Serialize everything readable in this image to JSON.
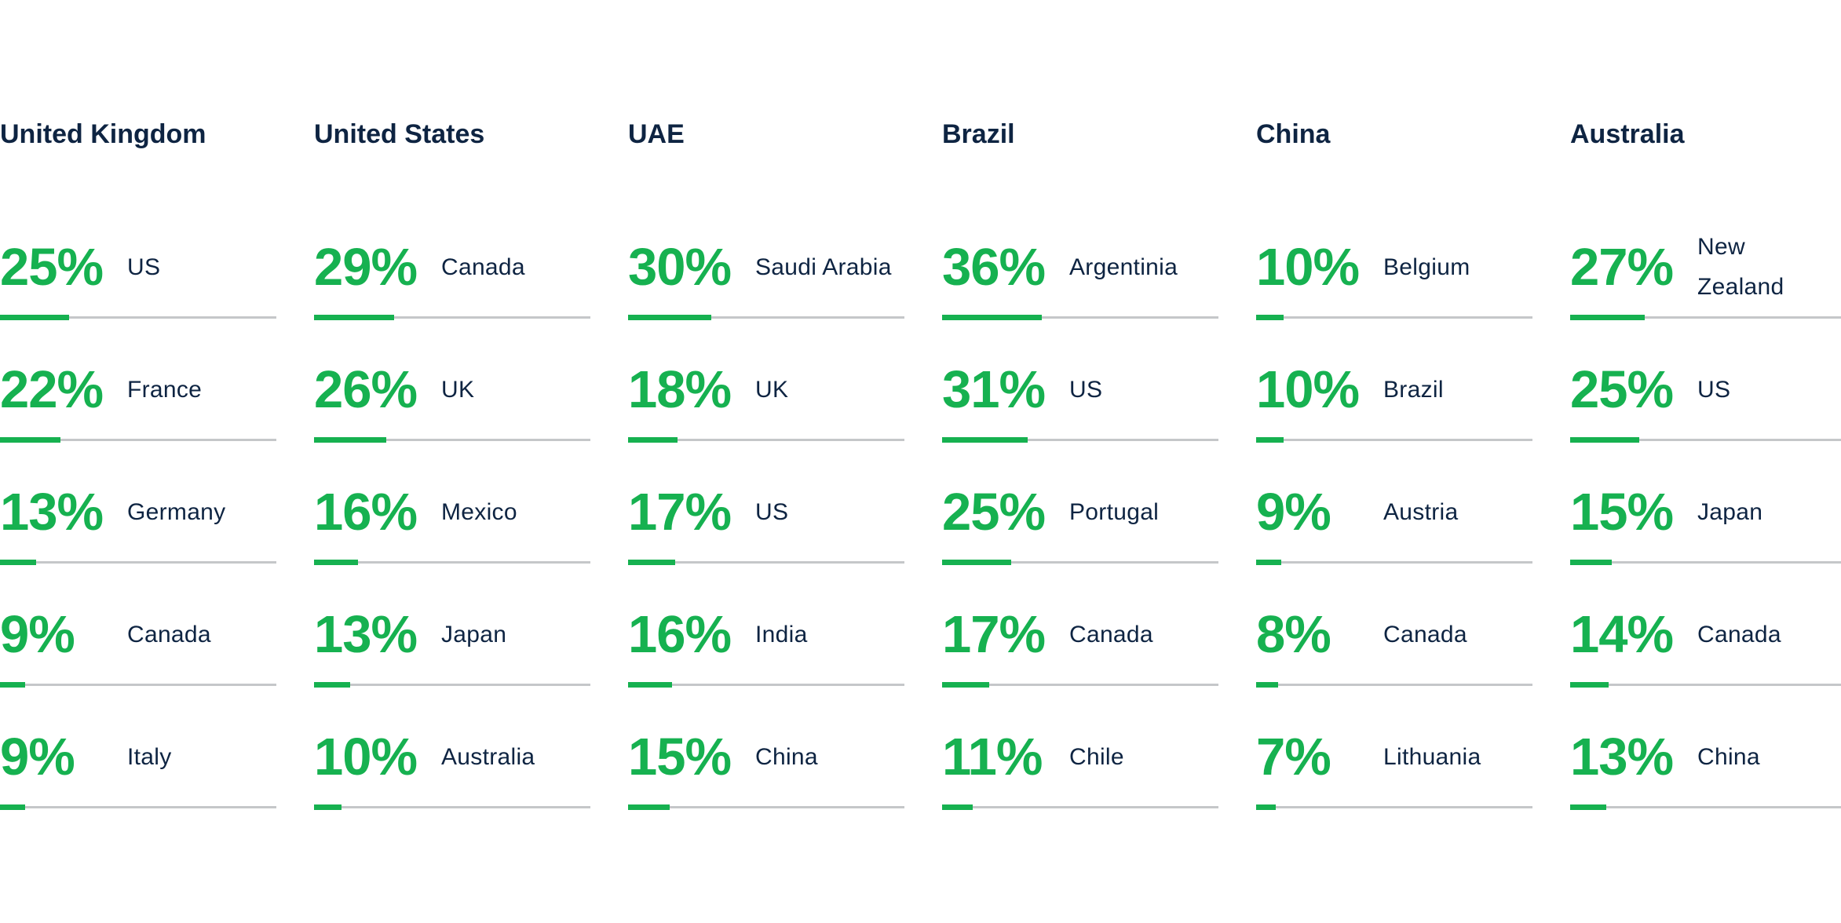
{
  "colors": {
    "accent_green": "#16B150",
    "navy": "#0E2442",
    "track_gray": "#C5C7C9",
    "background": "#FFFFFF"
  },
  "chart_data": {
    "type": "bar",
    "orientation": "horizontal",
    "unit": "%",
    "value_range": [
      0,
      100
    ],
    "grid": false,
    "legend": false,
    "description": "Six country columns, each with top five destination countries and percentage bars",
    "groups": [
      {
        "header": "United Kingdom",
        "rows": [
          {
            "value": 25,
            "percent_label": "25%",
            "label": "US"
          },
          {
            "value": 22,
            "percent_label": "22%",
            "label": "France"
          },
          {
            "value": 13,
            "percent_label": "13%",
            "label": "Germany"
          },
          {
            "value": 9,
            "percent_label": "9%",
            "label": "Canada"
          },
          {
            "value": 9,
            "percent_label": "9%",
            "label": "Italy"
          }
        ]
      },
      {
        "header": "United States",
        "rows": [
          {
            "value": 29,
            "percent_label": "29%",
            "label": "Canada"
          },
          {
            "value": 26,
            "percent_label": "26%",
            "label": "UK"
          },
          {
            "value": 16,
            "percent_label": "16%",
            "label": "Mexico"
          },
          {
            "value": 13,
            "percent_label": "13%",
            "label": "Japan"
          },
          {
            "value": 10,
            "percent_label": "10%",
            "label": "Australia"
          }
        ]
      },
      {
        "header": "UAE",
        "rows": [
          {
            "value": 30,
            "percent_label": "30%",
            "label": "Saudi Arabia"
          },
          {
            "value": 18,
            "percent_label": "18%",
            "label": "UK"
          },
          {
            "value": 17,
            "percent_label": "17%",
            "label": "US"
          },
          {
            "value": 16,
            "percent_label": "16%",
            "label": "India"
          },
          {
            "value": 15,
            "percent_label": "15%",
            "label": "China"
          }
        ]
      },
      {
        "header": "Brazil",
        "rows": [
          {
            "value": 36,
            "percent_label": "36%",
            "label": "Argentinia"
          },
          {
            "value": 31,
            "percent_label": "31%",
            "label": "US"
          },
          {
            "value": 25,
            "percent_label": "25%",
            "label": "Portugal"
          },
          {
            "value": 17,
            "percent_label": "17%",
            "label": "Canada"
          },
          {
            "value": 11,
            "percent_label": "11%",
            "label": "Chile"
          }
        ]
      },
      {
        "header": "China",
        "rows": [
          {
            "value": 10,
            "percent_label": "10%",
            "label": "Belgium"
          },
          {
            "value": 10,
            "percent_label": "10%",
            "label": "Brazil"
          },
          {
            "value": 9,
            "percent_label": "9%",
            "label": "Austria"
          },
          {
            "value": 8,
            "percent_label": "8%",
            "label": "Canada"
          },
          {
            "value": 7,
            "percent_label": "7%",
            "label": "Lithuania"
          }
        ]
      },
      {
        "header": "Australia",
        "rows": [
          {
            "value": 27,
            "percent_label": "27%",
            "label": "New\nZealand"
          },
          {
            "value": 25,
            "percent_label": "25%",
            "label": "US"
          },
          {
            "value": 15,
            "percent_label": "15%",
            "label": "Japan"
          },
          {
            "value": 14,
            "percent_label": "14%",
            "label": "Canada"
          },
          {
            "value": 13,
            "percent_label": "13%",
            "label": "China"
          }
        ]
      }
    ]
  }
}
